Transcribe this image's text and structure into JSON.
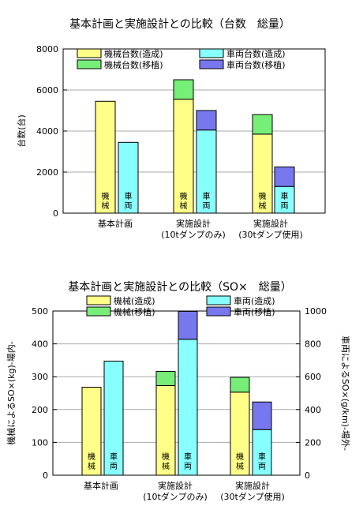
{
  "chart_data": [
    {
      "type": "bar",
      "title": "基本計画と実施設計との比較（台数　総量）",
      "ylabel": "台数(台)",
      "ylim": [
        0,
        8000
      ],
      "yticks": [
        "0",
        "2000",
        "4000",
        "6000",
        "8000"
      ],
      "categories": [
        {
          "line1": "基本計画",
          "line2": ""
        },
        {
          "line1": "実施設計",
          "line2": "(10tダンプのみ)"
        },
        {
          "line1": "実施設計",
          "line2": "(30tダンプ使用)"
        }
      ],
      "series": [
        {
          "name": "機械台数(造成)",
          "color": "#ffff88",
          "values": [
            5450,
            5550,
            3850
          ]
        },
        {
          "name": "機械台数(移植)",
          "color": "#77ee77",
          "values": [
            0,
            950,
            950
          ]
        },
        {
          "name": "車両台数(造成)",
          "color": "#88ffff",
          "values": [
            3450,
            4050,
            1300
          ]
        },
        {
          "name": "車両台数(移植)",
          "color": "#7777ee",
          "values": [
            0,
            950,
            950
          ]
        }
      ],
      "bar_labels": {
        "machine": "機械",
        "vehicle": "車両"
      },
      "grid": true,
      "legend": "top"
    },
    {
      "type": "bar",
      "title": "基本計画と実施設計との比較（SO×　総量）",
      "ylabel": "機械によるSO×(kg)-場内-",
      "ylabel_right": "車両によるSO×(g/km)-場外-",
      "ylim": [
        0,
        500
      ],
      "ylim_right": [
        0,
        1000
      ],
      "yticks": [
        "0",
        "100",
        "200",
        "300",
        "400",
        "500"
      ],
      "yticks_right": [
        "0",
        "200",
        "400",
        "600",
        "800",
        "1000"
      ],
      "categories": [
        {
          "line1": "基本計画",
          "line2": ""
        },
        {
          "line1": "実施設計",
          "line2": "(10tダンプのみ)"
        },
        {
          "line1": "実施設計",
          "line2": "(30tダンプ使用)"
        }
      ],
      "series": [
        {
          "name": "機械(造成)",
          "color": "#ffff88",
          "axis": "left",
          "values": [
            268,
            273,
            253
          ]
        },
        {
          "name": "機械(移植)",
          "color": "#77ee77",
          "axis": "left",
          "values": [
            0,
            43,
            45
          ]
        },
        {
          "name": "車両(造成)",
          "color": "#88ffff",
          "axis": "right",
          "values": [
            695,
            828,
            278
          ]
        },
        {
          "name": "車両(移植)",
          "color": "#7777ee",
          "axis": "right",
          "values": [
            0,
            170,
            168
          ]
        }
      ],
      "bar_labels": {
        "machine": "機械",
        "vehicle": "車両"
      },
      "grid": true,
      "legend": "top"
    }
  ]
}
